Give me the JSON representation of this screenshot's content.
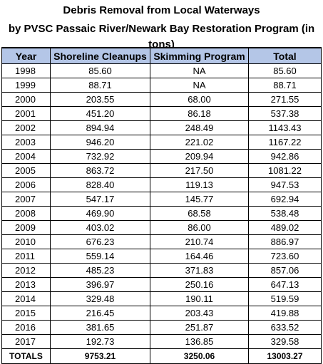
{
  "title": {
    "line1": "Debris Removal from Local Waterways",
    "line2": "by PVSC Passaic River/Newark Bay Restoration Program (in tons)"
  },
  "columns": [
    "Year",
    "Shoreline Cleanups",
    "Skimming Program",
    "Total"
  ],
  "rows": [
    [
      "1998",
      "85.60",
      "NA",
      "85.60"
    ],
    [
      "1999",
      "88.71",
      "NA",
      "88.71"
    ],
    [
      "2000",
      "203.55",
      "68.00",
      "271.55"
    ],
    [
      "2001",
      "451.20",
      "86.18",
      "537.38"
    ],
    [
      "2002",
      "894.94",
      "248.49",
      "1143.43"
    ],
    [
      "2003",
      "946.20",
      "221.02",
      "1167.22"
    ],
    [
      "2004",
      "732.92",
      "209.94",
      "942.86"
    ],
    [
      "2005",
      "863.72",
      "217.50",
      "1081.22"
    ],
    [
      "2006",
      "828.40",
      "119.13",
      "947.53"
    ],
    [
      "2007",
      "547.17",
      "145.77",
      "692.94"
    ],
    [
      "2008",
      "469.90",
      "68.58",
      "538.48"
    ],
    [
      "2009",
      "403.02",
      "86.00",
      "489.02"
    ],
    [
      "2010",
      "676.23",
      "210.74",
      "886.97"
    ],
    [
      "2011",
      "559.14",
      "164.46",
      "723.60"
    ],
    [
      "2012",
      "485.23",
      "371.83",
      "857.06"
    ],
    [
      "2013",
      "396.97",
      "250.16",
      "647.13"
    ],
    [
      "2014",
      "329.48",
      "190.11",
      "519.59"
    ],
    [
      "2015",
      "216.45",
      "203.43",
      "419.88"
    ],
    [
      "2016",
      "381.65",
      "251.87",
      "633.52"
    ],
    [
      "2017",
      "192.73",
      "136.85",
      "329.58"
    ]
  ],
  "totals": [
    "TOTALS",
    "9753.21",
    "3250.06",
    "13003.27"
  ],
  "colors": {
    "header_fill": "#b4c6e7",
    "grid_line": "#000000"
  }
}
